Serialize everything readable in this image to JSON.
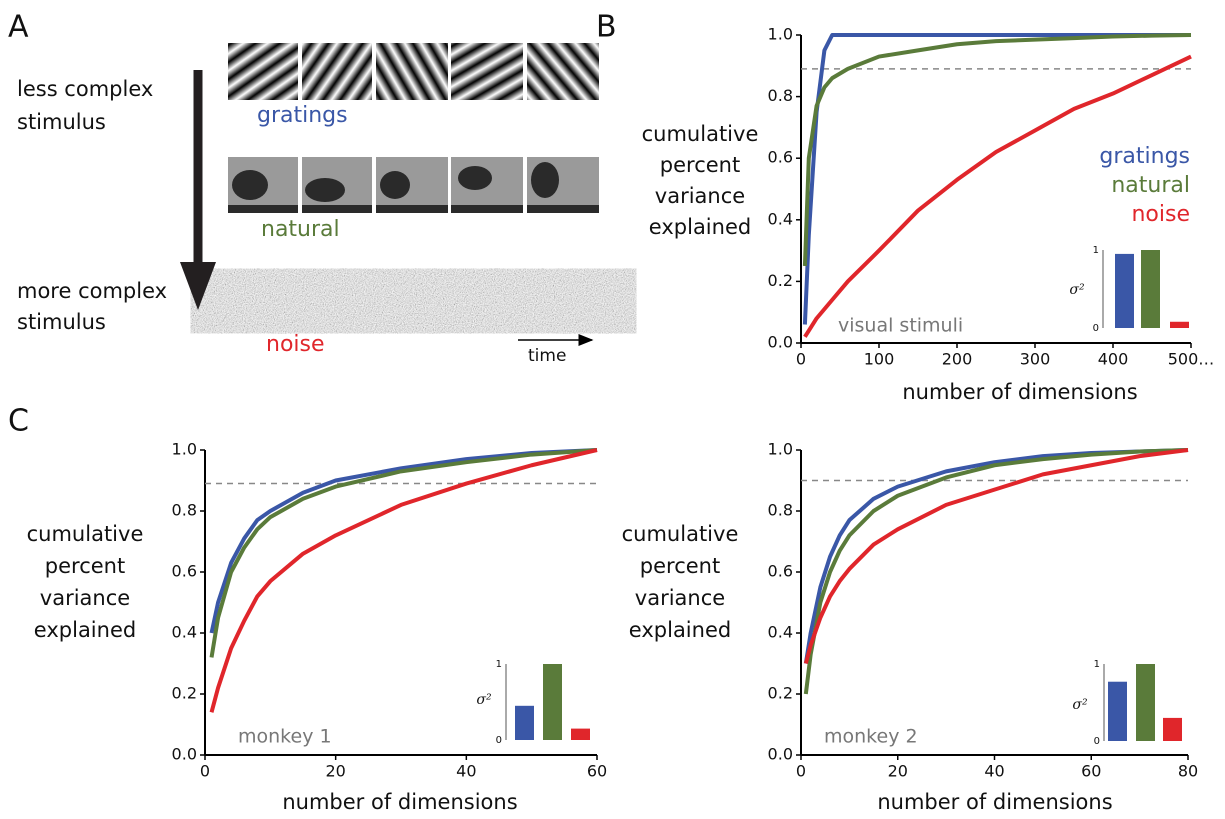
{
  "panel_labels": [
    "A",
    "B",
    "C"
  ],
  "panel_a": {
    "top_label": [
      "less complex",
      "stimulus"
    ],
    "bottom_label": [
      "more complex",
      "stimulus"
    ],
    "row_labels": [
      "gratings",
      "natural",
      "noise"
    ],
    "row_colors": [
      "#3a57a7",
      "#5a7b3a",
      "#e0262b"
    ],
    "time_label": "time"
  },
  "chart_data": [
    {
      "type": "line",
      "xlabel": "number of dimensions",
      "ylabel": [
        "cumulative",
        "percent",
        "variance",
        "explained"
      ],
      "annotation": "visual stimuli",
      "xlim": [
        0,
        500
      ],
      "ylim": [
        0,
        1
      ],
      "xticks": [
        0,
        100,
        200,
        300,
        {
          "value": 400,
          "label": "400"
        },
        {
          "value": 500,
          "label": "500…"
        }
      ],
      "yticks": [
        {
          "value": 0,
          "label": "0.0"
        },
        0.2,
        0.4,
        0.6,
        0.8,
        {
          "value": 1,
          "label": "1.0"
        }
      ],
      "reference_line": 0.89,
      "x": [
        5,
        10,
        20,
        30,
        40,
        60,
        100,
        150,
        200,
        250,
        300,
        350,
        400,
        450,
        500
      ],
      "series": [
        {
          "name": "gratings",
          "color": "#3a57a7",
          "values": [
            0.06,
            0.35,
            0.75,
            0.95,
            1.0,
            1.0,
            1.0,
            1.0,
            1.0,
            1.0,
            1.0,
            1.0,
            1.0,
            1.0,
            1.0
          ]
        },
        {
          "name": "natural",
          "color": "#5a7b3a",
          "values": [
            0.25,
            0.6,
            0.77,
            0.83,
            0.86,
            0.89,
            0.93,
            0.95,
            0.97,
            0.98,
            0.985,
            0.99,
            0.995,
            0.998,
            1.0
          ]
        },
        {
          "name": "noise",
          "color": "#e0262b",
          "values": [
            0.02,
            0.04,
            0.08,
            0.11,
            0.14,
            0.2,
            0.3,
            0.43,
            0.53,
            0.62,
            0.69,
            0.76,
            0.81,
            0.87,
            0.93
          ]
        }
      ],
      "inset": {
        "type": "bar",
        "ylabel": "σ²",
        "ylim": [
          0,
          1
        ],
        "yticks": [
          0,
          1
        ],
        "values": [
          0.95,
          1.0,
          0.08
        ],
        "colors": [
          "#3a57a7",
          "#5a7b3a",
          "#e0262b"
        ]
      }
    },
    {
      "type": "line",
      "xlabel": "number of dimensions",
      "ylabel": [
        "cumulative",
        "percent",
        "variance",
        "explained"
      ],
      "annotation": "monkey 1",
      "xlim": [
        0,
        60
      ],
      "ylim": [
        0,
        1
      ],
      "xticks": [
        0,
        20,
        40,
        60
      ],
      "yticks": [
        {
          "value": 0,
          "label": "0.0"
        },
        0.2,
        0.4,
        0.6,
        0.8,
        {
          "value": 1,
          "label": "1.0"
        }
      ],
      "reference_line": 0.89,
      "x": [
        1,
        2,
        4,
        6,
        8,
        10,
        15,
        20,
        30,
        40,
        50,
        60
      ],
      "series": [
        {
          "color": "#3a57a7",
          "values": [
            0.4,
            0.5,
            0.63,
            0.71,
            0.77,
            0.8,
            0.86,
            0.9,
            0.94,
            0.97,
            0.99,
            1.0
          ]
        },
        {
          "color": "#5a7b3a",
          "values": [
            0.32,
            0.45,
            0.6,
            0.68,
            0.74,
            0.78,
            0.84,
            0.88,
            0.93,
            0.96,
            0.985,
            1.0
          ]
        },
        {
          "color": "#e0262b",
          "values": [
            0.14,
            0.22,
            0.35,
            0.44,
            0.52,
            0.57,
            0.66,
            0.72,
            0.82,
            0.89,
            0.95,
            1.0
          ]
        }
      ],
      "inset": {
        "type": "bar",
        "ylabel": "σ²",
        "ylim": [
          0,
          1
        ],
        "yticks": [
          0,
          1
        ],
        "values": [
          0.45,
          1.0,
          0.15
        ],
        "colors": [
          "#3a57a7",
          "#5a7b3a",
          "#e0262b"
        ]
      }
    },
    {
      "type": "line",
      "xlabel": "number of dimensions",
      "ylabel": [
        "cumulative",
        "percent",
        "variance",
        "explained"
      ],
      "annotation": "monkey 2",
      "xlim": [
        0,
        80
      ],
      "ylim": [
        0,
        1
      ],
      "xticks": [
        0,
        20,
        40,
        60,
        80
      ],
      "yticks": [
        {
          "value": 0,
          "label": "0.0"
        },
        0.2,
        0.4,
        0.6,
        0.8,
        {
          "value": 1,
          "label": "1.0"
        }
      ],
      "reference_line": 0.9,
      "x": [
        1,
        2,
        4,
        6,
        8,
        10,
        15,
        20,
        30,
        40,
        50,
        60,
        70,
        80
      ],
      "series": [
        {
          "color": "#3a57a7",
          "values": [
            0.3,
            0.4,
            0.55,
            0.65,
            0.72,
            0.77,
            0.84,
            0.88,
            0.93,
            0.96,
            0.98,
            0.99,
            0.995,
            1.0
          ]
        },
        {
          "color": "#5a7b3a",
          "values": [
            0.2,
            0.33,
            0.5,
            0.6,
            0.67,
            0.72,
            0.8,
            0.85,
            0.91,
            0.95,
            0.97,
            0.985,
            0.995,
            1.0
          ]
        },
        {
          "color": "#e0262b",
          "values": [
            0.3,
            0.36,
            0.45,
            0.52,
            0.57,
            0.61,
            0.69,
            0.74,
            0.82,
            0.87,
            0.92,
            0.95,
            0.98,
            1.0
          ]
        }
      ],
      "inset": {
        "type": "bar",
        "ylabel": "σ²",
        "ylim": [
          0,
          1
        ],
        "yticks": [
          0,
          1
        ],
        "values": [
          0.77,
          1.0,
          0.3
        ],
        "colors": [
          "#3a57a7",
          "#5a7b3a",
          "#e0262b"
        ]
      }
    }
  ]
}
